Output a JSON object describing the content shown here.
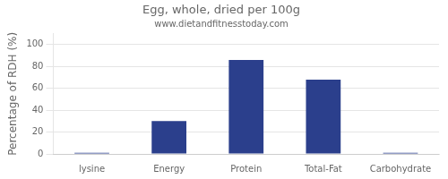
{
  "chart_data": {
    "type": "bar",
    "title": "Egg, whole, dried per 100g",
    "subtitle": "www.dietandfitnesstoday.com",
    "categories": [
      "lysine",
      "Energy",
      "Protein",
      "Total-Fat",
      "Carbohydrate"
    ],
    "values": [
      1,
      30,
      86,
      68,
      1
    ],
    "color": "#2b3f8c",
    "ylabel": "Percentage of RDH (%)",
    "ylim": [
      0,
      110
    ],
    "yticks": [
      0,
      20,
      40,
      60,
      80,
      100
    ],
    "grid": true
  }
}
